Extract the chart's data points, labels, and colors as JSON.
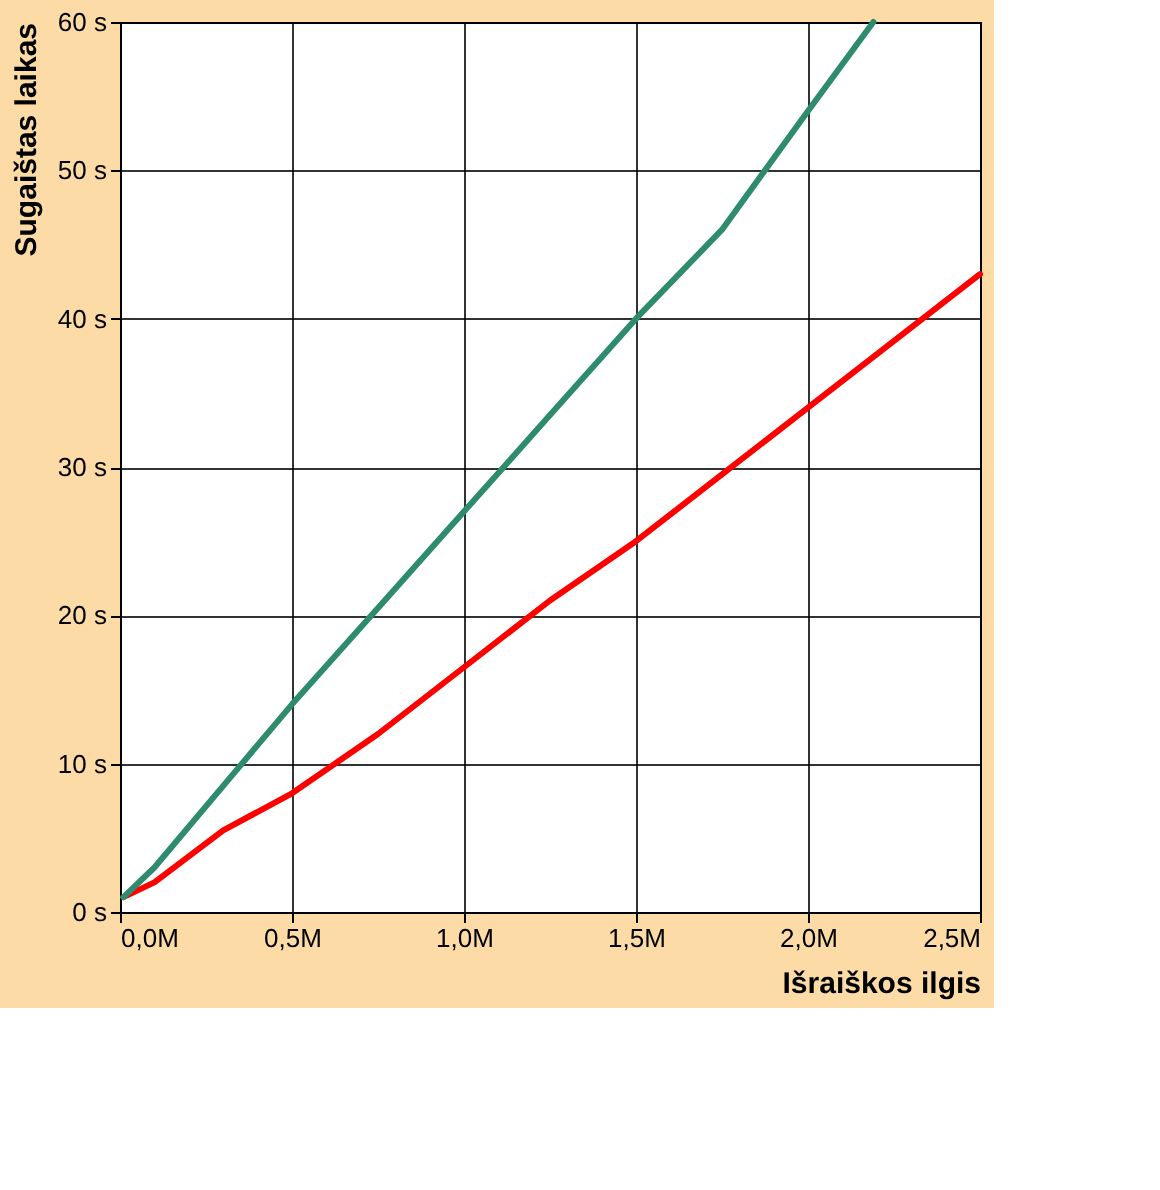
{
  "chart_data": {
    "type": "line",
    "xlabel": "Išraiškos ilgis",
    "ylabel": "Sugaištas laikas",
    "xlim": [
      0,
      2.5
    ],
    "ylim": [
      0,
      60
    ],
    "xticks": [
      {
        "value": 0,
        "label": "0,0M"
      },
      {
        "value": 0.5,
        "label": "0,5M"
      },
      {
        "value": 1,
        "label": "1,0M"
      },
      {
        "value": 1.5,
        "label": "1,5M"
      },
      {
        "value": 2,
        "label": "2,0M"
      },
      {
        "value": 2.5,
        "label": "2,5M"
      }
    ],
    "yticks": [
      {
        "value": 0,
        "label": "0 s"
      },
      {
        "value": 10,
        "label": "10 s"
      },
      {
        "value": 20,
        "label": "20 s"
      },
      {
        "value": 30,
        "label": "30 s"
      },
      {
        "value": 40,
        "label": "40 s"
      },
      {
        "value": 50,
        "label": "50 s"
      },
      {
        "value": 60,
        "label": "60 s"
      }
    ],
    "grid": true,
    "legend": false,
    "line_style": "solid",
    "marker": "none",
    "series": [
      {
        "color": "#ff0000",
        "x": [
          0.01,
          0.1,
          0.3,
          0.5,
          0.75,
          1.0,
          1.25,
          1.5,
          1.75,
          2.0,
          2.25,
          2.5
        ],
        "values": [
          1,
          2,
          5.5,
          8,
          12,
          16.5,
          21,
          25,
          29.5,
          34,
          38.5,
          43
        ]
      },
      {
        "color": "#2e8b6e",
        "x": [
          0.01,
          0.1,
          0.3,
          0.5,
          0.75,
          1.0,
          1.25,
          1.5,
          1.75,
          2.0,
          2.19
        ],
        "values": [
          1,
          3,
          8.5,
          14,
          20.5,
          27,
          33.5,
          40,
          46,
          54,
          60
        ]
      }
    ]
  }
}
